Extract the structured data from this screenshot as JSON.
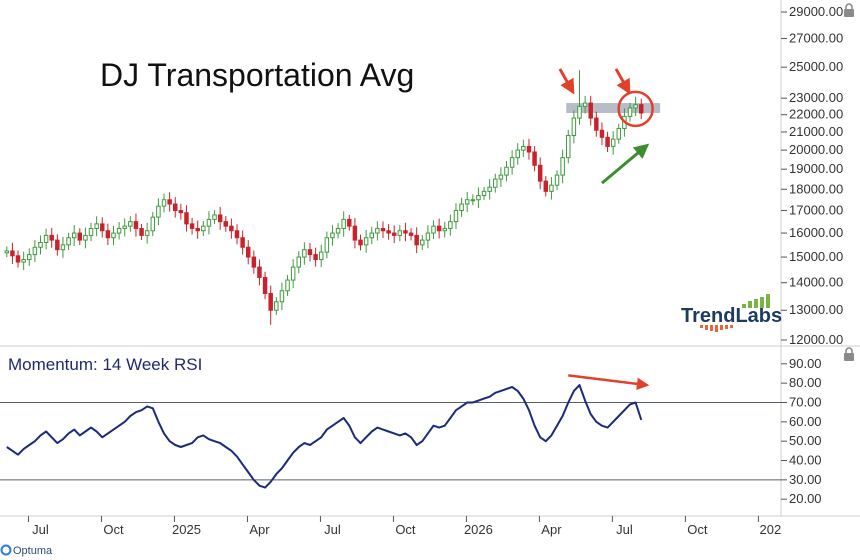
{
  "chart_data": [
    {
      "type": "candlestick",
      "title": "DJ Transportation Avg",
      "y_ticks": [
        "29000.00",
        "27000.00",
        "25000.00",
        "23000.00",
        "22000.00",
        "21000.00",
        "20000.00",
        "19000.00",
        "18000.00",
        "17000.00",
        "16000.00",
        "15000.00",
        "14000.00",
        "13000.00",
        "12000.00"
      ],
      "ylim": [
        12000,
        29000
      ],
      "scale": "log",
      "grid": false,
      "resistance_band": {
        "low": 22100,
        "high": 22700,
        "color": "#a9b1bd"
      },
      "up_color": "#3e9a3e",
      "down_color": "#c8232c",
      "close": [
        15250,
        15050,
        14800,
        14900,
        15100,
        15400,
        15600,
        15900,
        15700,
        15300,
        15500,
        15800,
        16000,
        15700,
        15900,
        16200,
        16400,
        16100,
        15800,
        16000,
        16200,
        16300,
        16500,
        16200,
        15900,
        16100,
        16700,
        17200,
        17500,
        17300,
        17000,
        16900,
        16400,
        16200,
        16100,
        16300,
        16600,
        16800,
        16500,
        16300,
        16100,
        15800,
        15400,
        15000,
        14600,
        14200,
        13600,
        13000,
        13300,
        13700,
        14100,
        14600,
        15000,
        15300,
        15100,
        14900,
        15200,
        15800,
        16000,
        16200,
        16600,
        16300,
        15700,
        15500,
        15800,
        16000,
        16200,
        16100,
        16000,
        15900,
        16100,
        16000,
        15900,
        15500,
        15700,
        16000,
        16300,
        16100,
        16200,
        16500,
        17000,
        17300,
        17500,
        17500,
        17700,
        17900,
        18100,
        18500,
        18700,
        19100,
        19600,
        20000,
        20200,
        19900,
        19200,
        18400,
        17900,
        18200,
        18700,
        19600,
        20800,
        21800,
        22500,
        22700,
        21800,
        21100,
        20700,
        20200,
        20600,
        21200,
        21900,
        22400,
        22600,
        22100
      ],
      "x_ticks": [
        {
          "label": "Jul",
          "index": 6
        },
        {
          "label": "Oct",
          "index": 19
        },
        {
          "label": "2025",
          "index": 32
        },
        {
          "label": "Apr",
          "index": 45
        },
        {
          "label": "Jul",
          "index": 58
        },
        {
          "label": "Oct",
          "index": 71
        },
        {
          "label": "2026",
          "index": 84
        },
        {
          "label": "Apr",
          "index": 97
        },
        {
          "label": "Jul",
          "index": 110
        },
        {
          "label": "Oct",
          "index": 123
        },
        {
          "label": "202",
          "index": 136
        }
      ],
      "x_index_range": [
        -0.5,
        137
      ],
      "annotations": [
        {
          "type": "arrow",
          "color": "#e1402a",
          "target_index": 101,
          "target_value": 23200
        },
        {
          "type": "arrow",
          "color": "#e1402a",
          "target_index": 111,
          "target_value": 23200
        },
        {
          "type": "circle",
          "color": "#e1402a",
          "center_index": 112,
          "center_value": 22350
        },
        {
          "type": "arrow",
          "color": "#3b8e2e",
          "from_index": 106,
          "from_value": 18300,
          "to_index": 114,
          "to_value": 20250
        }
      ]
    },
    {
      "type": "line",
      "label": "Momentum: 14 Week RSI",
      "y_ticks": [
        "90.00",
        "80.00",
        "70.00",
        "60.00",
        "50.00",
        "40.00",
        "30.00",
        "20.00"
      ],
      "ylim": [
        17,
        93
      ],
      "reference_lines": [
        70,
        30
      ],
      "color": "#1b2a7a",
      "values": [
        47,
        45,
        43,
        46,
        48,
        50,
        53,
        55,
        52,
        49,
        51,
        54,
        56,
        53,
        55,
        57,
        55,
        52,
        54,
        56,
        58,
        60,
        63,
        65,
        66,
        68,
        67,
        60,
        54,
        50,
        48,
        47,
        48,
        49,
        52,
        53,
        51,
        50,
        49,
        47,
        45,
        42,
        38,
        34,
        30,
        27,
        26,
        29,
        33,
        36,
        40,
        44,
        47,
        49,
        48,
        50,
        52,
        56,
        58,
        60,
        62,
        58,
        52,
        49,
        52,
        55,
        57,
        56,
        55,
        54,
        53,
        54,
        52,
        48,
        50,
        54,
        58,
        57,
        58,
        62,
        66,
        68,
        70,
        70,
        71,
        72,
        73,
        75,
        76,
        77,
        78,
        76,
        72,
        66,
        58,
        52,
        50,
        53,
        58,
        63,
        70,
        76,
        79,
        71,
        64,
        60,
        58,
        57,
        60,
        63,
        66,
        69,
        70,
        61
      ],
      "annotations": [
        {
          "type": "arrow",
          "color": "#e1402a",
          "from_index": 100,
          "from_value": 84,
          "to_index": 114,
          "to_value": 79
        }
      ]
    }
  ],
  "brand": {
    "name": "TrendLabs"
  },
  "footer": {
    "logo": "Optuma"
  }
}
